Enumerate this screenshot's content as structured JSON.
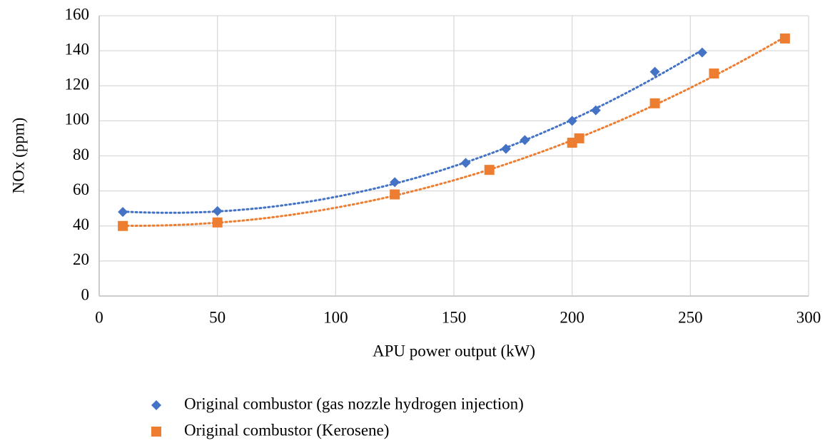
{
  "chart_data": {
    "type": "scatter",
    "x_label": "APU power output (kW)",
    "y_label": "NOx (ppm)",
    "xlim": [
      0,
      300
    ],
    "xticks": [
      0,
      50,
      100,
      150,
      200,
      250,
      300
    ],
    "ylim": [
      0,
      160
    ],
    "yticks": [
      0,
      20,
      40,
      60,
      80,
      100,
      120,
      140,
      160
    ],
    "grid": true,
    "legend": "bottom",
    "trendline": "polynomial",
    "series": [
      {
        "name": "Original combustor (gas nozzle hydrogen injection)",
        "color": "#4472c4",
        "marker": "diamond",
        "x": [
          10,
          50,
          125,
          155,
          172,
          180,
          200,
          210,
          235,
          255
        ],
        "values": [
          48,
          48.5,
          65,
          76,
          84,
          89,
          100,
          106,
          128,
          139
        ]
      },
      {
        "name": "Original combustor (Kerosene)",
        "color": "#ed7d31",
        "marker": "square",
        "x": [
          10,
          50,
          125,
          165,
          200,
          203,
          235,
          260,
          290
        ],
        "values": [
          40,
          42,
          58,
          72,
          87.5,
          90,
          110,
          127,
          147
        ]
      }
    ]
  }
}
